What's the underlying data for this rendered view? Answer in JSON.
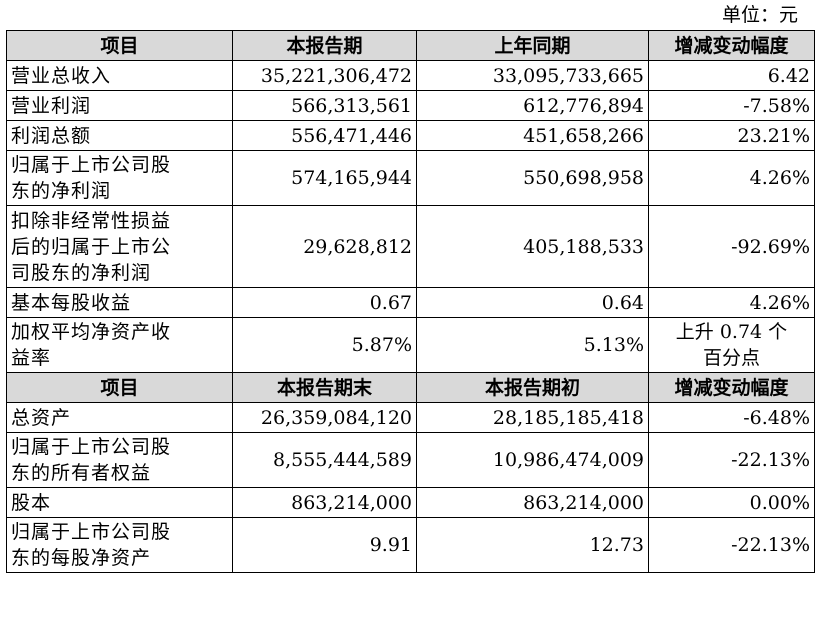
{
  "unit_label": "单位：元",
  "section1": {
    "headers": [
      "项目",
      "本报告期",
      "上年同期",
      "增减变动幅度"
    ],
    "rows": [
      {
        "item": "营业总收入",
        "current": "35,221,306,472",
        "previous": "33,095,733,665",
        "change": "6.42"
      },
      {
        "item": "营业利润",
        "current": "566,313,561",
        "previous": "612,776,894",
        "change": "-7.58%"
      },
      {
        "item": "利润总额",
        "current": "556,471,446",
        "previous": "451,658,266",
        "change": "23.21%"
      },
      {
        "item_line1": "归属于上市公司股",
        "item_line2": "东的净利润",
        "current": "574,165,944",
        "previous": "550,698,958",
        "change": "4.26%"
      },
      {
        "item_line1": "扣除非经常性损益",
        "item_line2": "后的归属于上市公",
        "item_line3": "司股东的净利润",
        "current": "29,628,812",
        "previous": "405,188,533",
        "change": "-92.69%"
      },
      {
        "item": "基本每股收益",
        "current": "0.67",
        "previous": "0.64",
        "change": "4.26%"
      },
      {
        "item_line1": "加权平均净资产收",
        "item_line2": "益率",
        "current": "5.87%",
        "previous": "5.13%",
        "change_line1": "上升 0.74 个",
        "change_line2": "百分点"
      }
    ]
  },
  "section2": {
    "headers": [
      "项目",
      "本报告期末",
      "本报告期初",
      "增减变动幅度"
    ],
    "rows": [
      {
        "item": "总资产",
        "current": "26,359,084,120",
        "previous": "28,185,185,418",
        "change": "-6.48%"
      },
      {
        "item_line1": "归属于上市公司股",
        "item_line2": "东的所有者权益",
        "current": "8,555,444,589",
        "previous": "10,986,474,009",
        "change": "-22.13%"
      },
      {
        "item": "股本",
        "current": "863,214,000",
        "previous": "863,214,000",
        "change": "0.00%"
      },
      {
        "item_line1": "归属于上市公司股",
        "item_line2": "东的每股净资产",
        "current": "9.91",
        "previous": "12.73",
        "change": "-22.13%"
      }
    ]
  }
}
